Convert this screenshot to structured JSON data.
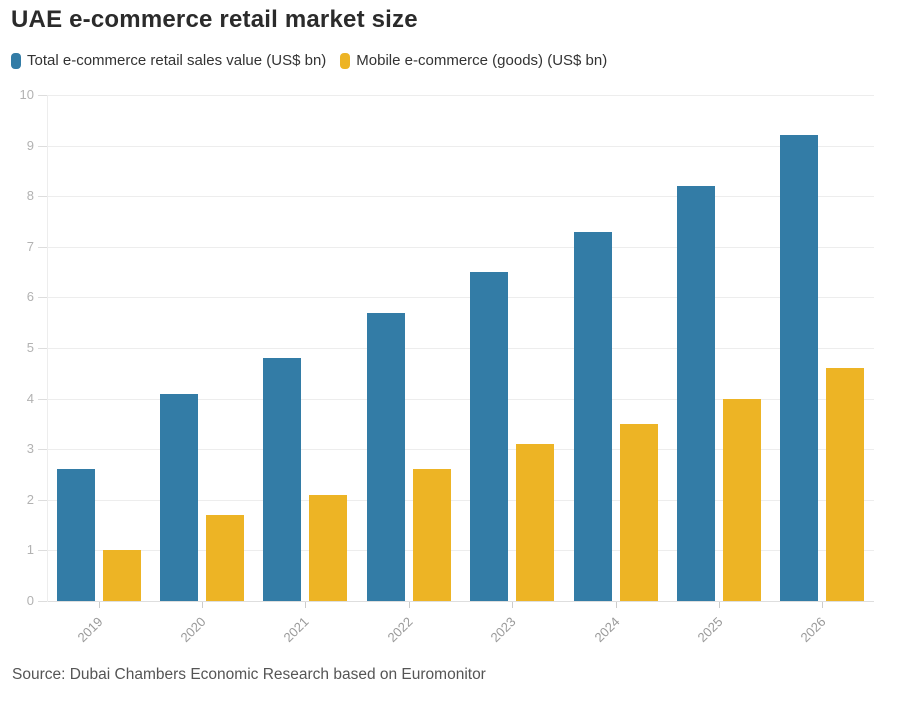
{
  "title": "UAE e-commerce retail market size",
  "source": "Source: Dubai Chambers Economic Research based on Euromonitor",
  "legend": [
    {
      "label": "Total e-commerce retail sales value (US$ bn)",
      "color": "#337ca6"
    },
    {
      "label": "Mobile e-commerce (goods) (US$ bn)",
      "color": "#edb425"
    }
  ],
  "chart_data": {
    "type": "bar",
    "title": "UAE e-commerce retail market size",
    "categories": [
      "2019",
      "2020",
      "2021",
      "2022",
      "2023",
      "2024",
      "2025",
      "2026"
    ],
    "series": [
      {
        "name": "Total e-commerce retail sales value (US$ bn)",
        "color": "#337ca6",
        "values": [
          2.6,
          4.1,
          4.8,
          5.7,
          6.5,
          7.3,
          8.2,
          9.2
        ]
      },
      {
        "name": "Mobile e-commerce (goods) (US$ bn)",
        "color": "#edb425",
        "values": [
          1.0,
          1.7,
          2.1,
          2.6,
          3.1,
          3.5,
          4.0,
          4.6
        ]
      }
    ],
    "xlabel": "",
    "ylabel": "",
    "ylim": [
      0,
      10
    ],
    "yticks": [
      0,
      1,
      2,
      3,
      4,
      5,
      6,
      7,
      8,
      9,
      10
    ],
    "grid": true,
    "legend_position": "top",
    "colors": {
      "grid": "#ededed",
      "axis": "#dedede",
      "tick_label": "#b2b2b2",
      "x_label": "#999999"
    }
  }
}
